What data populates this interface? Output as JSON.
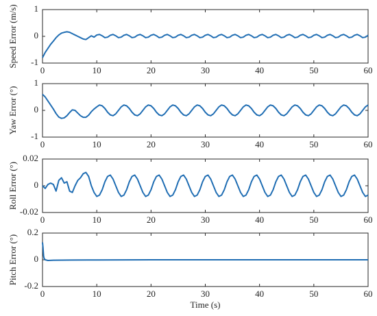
{
  "chart_data": [
    {
      "type": "line",
      "ylabel": "Speed Error (m/s)",
      "color": "#1f6db3",
      "xlim": [
        0,
        60
      ],
      "xticks": [
        0,
        10,
        20,
        30,
        40,
        50,
        60
      ],
      "ylim": [
        -1,
        1
      ],
      "yticks": [
        -1,
        0,
        1
      ],
      "x": [
        0,
        0.5,
        1,
        1.5,
        2,
        2.5,
        3,
        3.5,
        4,
        4.5,
        5,
        5.5,
        6,
        6.5,
        7,
        7.5,
        8,
        8.5,
        9,
        9.5,
        10,
        10.5,
        11,
        11.5,
        12,
        12.5,
        13,
        13.5,
        14,
        14.5,
        15,
        15.5,
        16,
        16.5,
        17,
        17.5,
        18,
        18.5,
        19,
        19.5,
        20,
        20.5,
        21,
        21.5,
        22,
        22.5,
        23,
        23.5,
        24,
        24.5,
        25,
        25.5,
        26,
        26.5,
        27,
        27.5,
        28,
        28.5,
        29,
        29.5,
        30,
        30.5,
        31,
        31.5,
        32,
        32.5,
        33,
        33.5,
        34,
        34.5,
        35,
        35.5,
        36,
        36.5,
        37,
        37.5,
        38,
        38.5,
        39,
        39.5,
        40,
        40.5,
        41,
        41.5,
        42,
        42.5,
        43,
        43.5,
        44,
        44.5,
        45,
        45.5,
        46,
        46.5,
        47,
        47.5,
        48,
        48.5,
        49,
        49.5,
        50,
        50.5,
        51,
        51.5,
        52,
        52.5,
        53,
        53.5,
        54,
        54.5,
        55,
        55.5,
        56,
        56.5,
        57,
        57.5,
        58,
        58.5,
        59,
        59.5,
        60
      ],
      "values": [
        -0.8,
        -0.6,
        -0.45,
        -0.3,
        -0.18,
        -0.05,
        0.05,
        0.12,
        0.15,
        0.17,
        0.15,
        0.1,
        0.05,
        0,
        -0.05,
        -0.1,
        -0.12,
        -0.05,
        0.02,
        -0.03,
        0.05,
        0.07,
        0.02,
        -0.05,
        -0.03,
        0.04,
        0.07,
        0.02,
        -0.05,
        -0.03,
        0.04,
        0.07,
        0.02,
        -0.05,
        -0.03,
        0.04,
        0.07,
        0.02,
        -0.05,
        -0.03,
        0.04,
        0.07,
        0.02,
        -0.05,
        -0.03,
        0.04,
        0.07,
        0.02,
        -0.05,
        -0.03,
        0.04,
        0.07,
        0.02,
        -0.05,
        -0.03,
        0.04,
        0.07,
        0.02,
        -0.05,
        -0.03,
        0.04,
        0.07,
        0.02,
        -0.05,
        -0.03,
        0.04,
        0.07,
        0.02,
        -0.05,
        -0.03,
        0.04,
        0.07,
        0.02,
        -0.05,
        -0.03,
        0.04,
        0.07,
        0.02,
        -0.05,
        -0.03,
        0.04,
        0.07,
        0.02,
        -0.05,
        -0.03,
        0.04,
        0.07,
        0.02,
        -0.05,
        -0.03,
        0.04,
        0.07,
        0.02,
        -0.05,
        -0.03,
        0.04,
        0.07,
        0.02,
        -0.05,
        -0.03,
        0.04,
        0.07,
        0.02,
        -0.05,
        -0.03,
        0.04,
        0.07,
        0.02,
        -0.05,
        -0.03,
        0.04,
        0.07,
        0.02,
        -0.05,
        -0.03,
        0.04,
        0.07,
        0.02,
        -0.05,
        -0.03,
        0.04
      ]
    },
    {
      "type": "line",
      "ylabel": "Yaw Error (°)",
      "color": "#1f6db3",
      "xlim": [
        0,
        60
      ],
      "xticks": [
        0,
        10,
        20,
        30,
        40,
        50,
        60
      ],
      "ylim": [
        -1,
        1
      ],
      "yticks": [
        -1,
        0,
        1
      ],
      "x": [
        0,
        0.5,
        1,
        1.5,
        2,
        2.5,
        3,
        3.5,
        4,
        4.5,
        5,
        5.5,
        6,
        6.5,
        7,
        7.5,
        8,
        8.5,
        9,
        9.5,
        10,
        10.5,
        11,
        11.5,
        12,
        12.5,
        13,
        13.5,
        14,
        14.5,
        15,
        15.5,
        16,
        16.5,
        17,
        17.5,
        18,
        18.5,
        19,
        19.5,
        20,
        20.5,
        21,
        21.5,
        22,
        22.5,
        23,
        23.5,
        24,
        24.5,
        25,
        25.5,
        26,
        26.5,
        27,
        27.5,
        28,
        28.5,
        29,
        29.5,
        30,
        30.5,
        31,
        31.5,
        32,
        32.5,
        33,
        33.5,
        34,
        34.5,
        35,
        35.5,
        36,
        36.5,
        37,
        37.5,
        38,
        38.5,
        39,
        39.5,
        40,
        40.5,
        41,
        41.5,
        42,
        42.5,
        43,
        43.5,
        44,
        44.5,
        45,
        45.5,
        46,
        46.5,
        47,
        47.5,
        48,
        48.5,
        49,
        49.5,
        50,
        50.5,
        51,
        51.5,
        52,
        52.5,
        53,
        53.5,
        54,
        54.5,
        55,
        55.5,
        56,
        56.5,
        57,
        57.5,
        58,
        58.5,
        59,
        59.5,
        60
      ],
      "values": [
        0.6,
        0.5,
        0.35,
        0.2,
        0.05,
        -0.12,
        -0.25,
        -0.3,
        -0.28,
        -0.2,
        -0.08,
        0.02,
        0,
        -0.1,
        -0.2,
        -0.26,
        -0.26,
        -0.18,
        -0.05,
        0.05,
        0.13,
        0.2,
        0.17,
        0.07,
        -0.07,
        -0.17,
        -0.2,
        -0.13,
        0,
        0.13,
        0.2,
        0.17,
        0.07,
        -0.07,
        -0.17,
        -0.2,
        -0.13,
        0,
        0.13,
        0.2,
        0.17,
        0.07,
        -0.07,
        -0.17,
        -0.2,
        -0.13,
        0,
        0.13,
        0.2,
        0.17,
        0.07,
        -0.07,
        -0.17,
        -0.2,
        -0.13,
        0,
        0.13,
        0.2,
        0.17,
        0.07,
        -0.07,
        -0.17,
        -0.2,
        -0.13,
        0,
        0.13,
        0.2,
        0.17,
        0.07,
        -0.07,
        -0.17,
        -0.2,
        -0.13,
        0,
        0.13,
        0.2,
        0.17,
        0.07,
        -0.07,
        -0.17,
        -0.2,
        -0.13,
        0,
        0.13,
        0.2,
        0.17,
        0.07,
        -0.07,
        -0.17,
        -0.2,
        -0.13,
        0,
        0.13,
        0.2,
        0.17,
        0.07,
        -0.07,
        -0.17,
        -0.2,
        -0.13,
        0,
        0.13,
        0.2,
        0.17,
        0.07,
        -0.07,
        -0.17,
        -0.2,
        -0.13,
        0,
        0.13,
        0.2,
        0.17,
        0.07,
        -0.07,
        -0.17,
        -0.2,
        -0.13,
        0,
        0.13,
        0.2
      ]
    },
    {
      "type": "line",
      "ylabel": "Roll Error (°)",
      "color": "#1f6db3",
      "xlim": [
        0,
        60
      ],
      "xticks": [
        0,
        10,
        20,
        30,
        40,
        50,
        60
      ],
      "ylim": [
        -0.02,
        0.02
      ],
      "yticks": [
        -0.02,
        0,
        0.02
      ],
      "x": [
        0,
        0.5,
        1,
        1.5,
        2,
        2.5,
        3,
        3.5,
        4,
        4.5,
        5,
        5.5,
        6,
        6.5,
        7,
        7.5,
        8,
        8.5,
        9,
        9.5,
        10,
        10.5,
        11,
        11.5,
        12,
        12.5,
        13,
        13.5,
        14,
        14.5,
        15,
        15.5,
        16,
        16.5,
        17,
        17.5,
        18,
        18.5,
        19,
        19.5,
        20,
        20.5,
        21,
        21.5,
        22,
        22.5,
        23,
        23.5,
        24,
        24.5,
        25,
        25.5,
        26,
        26.5,
        27,
        27.5,
        28,
        28.5,
        29,
        29.5,
        30,
        30.5,
        31,
        31.5,
        32,
        32.5,
        33,
        33.5,
        34,
        34.5,
        35,
        35.5,
        36,
        36.5,
        37,
        37.5,
        38,
        38.5,
        39,
        39.5,
        40,
        40.5,
        41,
        41.5,
        42,
        42.5,
        43,
        43.5,
        44,
        44.5,
        45,
        45.5,
        46,
        46.5,
        47,
        47.5,
        48,
        48.5,
        49,
        49.5,
        50,
        50.5,
        51,
        51.5,
        52,
        52.5,
        53,
        53.5,
        54,
        54.5,
        55,
        55.5,
        56,
        56.5,
        57,
        57.5,
        58,
        58.5,
        59,
        59.5,
        60
      ],
      "values": [
        0,
        -0.002,
        0.001,
        0.002,
        0.001,
        -0.004,
        0.004,
        0.006,
        0.002,
        0.003,
        -0.004,
        -0.005,
        0,
        0.004,
        0.006,
        0.009,
        0.01,
        0.007,
        0,
        -0.005,
        -0.008,
        -0.007,
        -0.003,
        0.003,
        0.007,
        0.008,
        0.005,
        0,
        -0.005,
        -0.008,
        -0.007,
        -0.003,
        0.003,
        0.007,
        0.008,
        0.005,
        0,
        -0.005,
        -0.008,
        -0.007,
        -0.003,
        0.003,
        0.007,
        0.008,
        0.005,
        0,
        -0.005,
        -0.008,
        -0.007,
        -0.003,
        0.003,
        0.007,
        0.008,
        0.005,
        0,
        -0.005,
        -0.008,
        -0.007,
        -0.003,
        0.003,
        0.007,
        0.008,
        0.005,
        0,
        -0.005,
        -0.008,
        -0.007,
        -0.003,
        0.003,
        0.007,
        0.008,
        0.005,
        0,
        -0.005,
        -0.008,
        -0.007,
        -0.003,
        0.003,
        0.007,
        0.008,
        0.005,
        0,
        -0.005,
        -0.008,
        -0.007,
        -0.003,
        0.003,
        0.007,
        0.008,
        0.005,
        0,
        -0.005,
        -0.008,
        -0.007,
        -0.003,
        0.003,
        0.007,
        0.008,
        0.005,
        0,
        -0.005,
        -0.008,
        -0.007,
        -0.003,
        0.003,
        0.007,
        0.008,
        0.005,
        0,
        -0.005,
        -0.008,
        -0.007,
        -0.003,
        0.003,
        0.007,
        0.008,
        0.005,
        0,
        -0.005,
        -0.008,
        -0.007
      ]
    },
    {
      "type": "line",
      "ylabel": "Pitch Error (°)",
      "xlabel": "Time (s)",
      "color": "#1f6db3",
      "xlim": [
        0,
        60
      ],
      "xticks": [
        0,
        10,
        20,
        30,
        40,
        50,
        60
      ],
      "ylim": [
        -0.2,
        0.2
      ],
      "yticks": [
        -0.2,
        0,
        0.2
      ],
      "x": [
        0,
        0.1,
        0.2,
        0.3,
        0.5,
        1,
        2,
        5,
        10,
        20,
        30,
        40,
        50,
        60
      ],
      "values": [
        0.13,
        0.09,
        0.03,
        0.01,
        0,
        -0.005,
        -0.003,
        -0.002,
        -0.001,
        0,
        0,
        0,
        0,
        0
      ]
    }
  ]
}
